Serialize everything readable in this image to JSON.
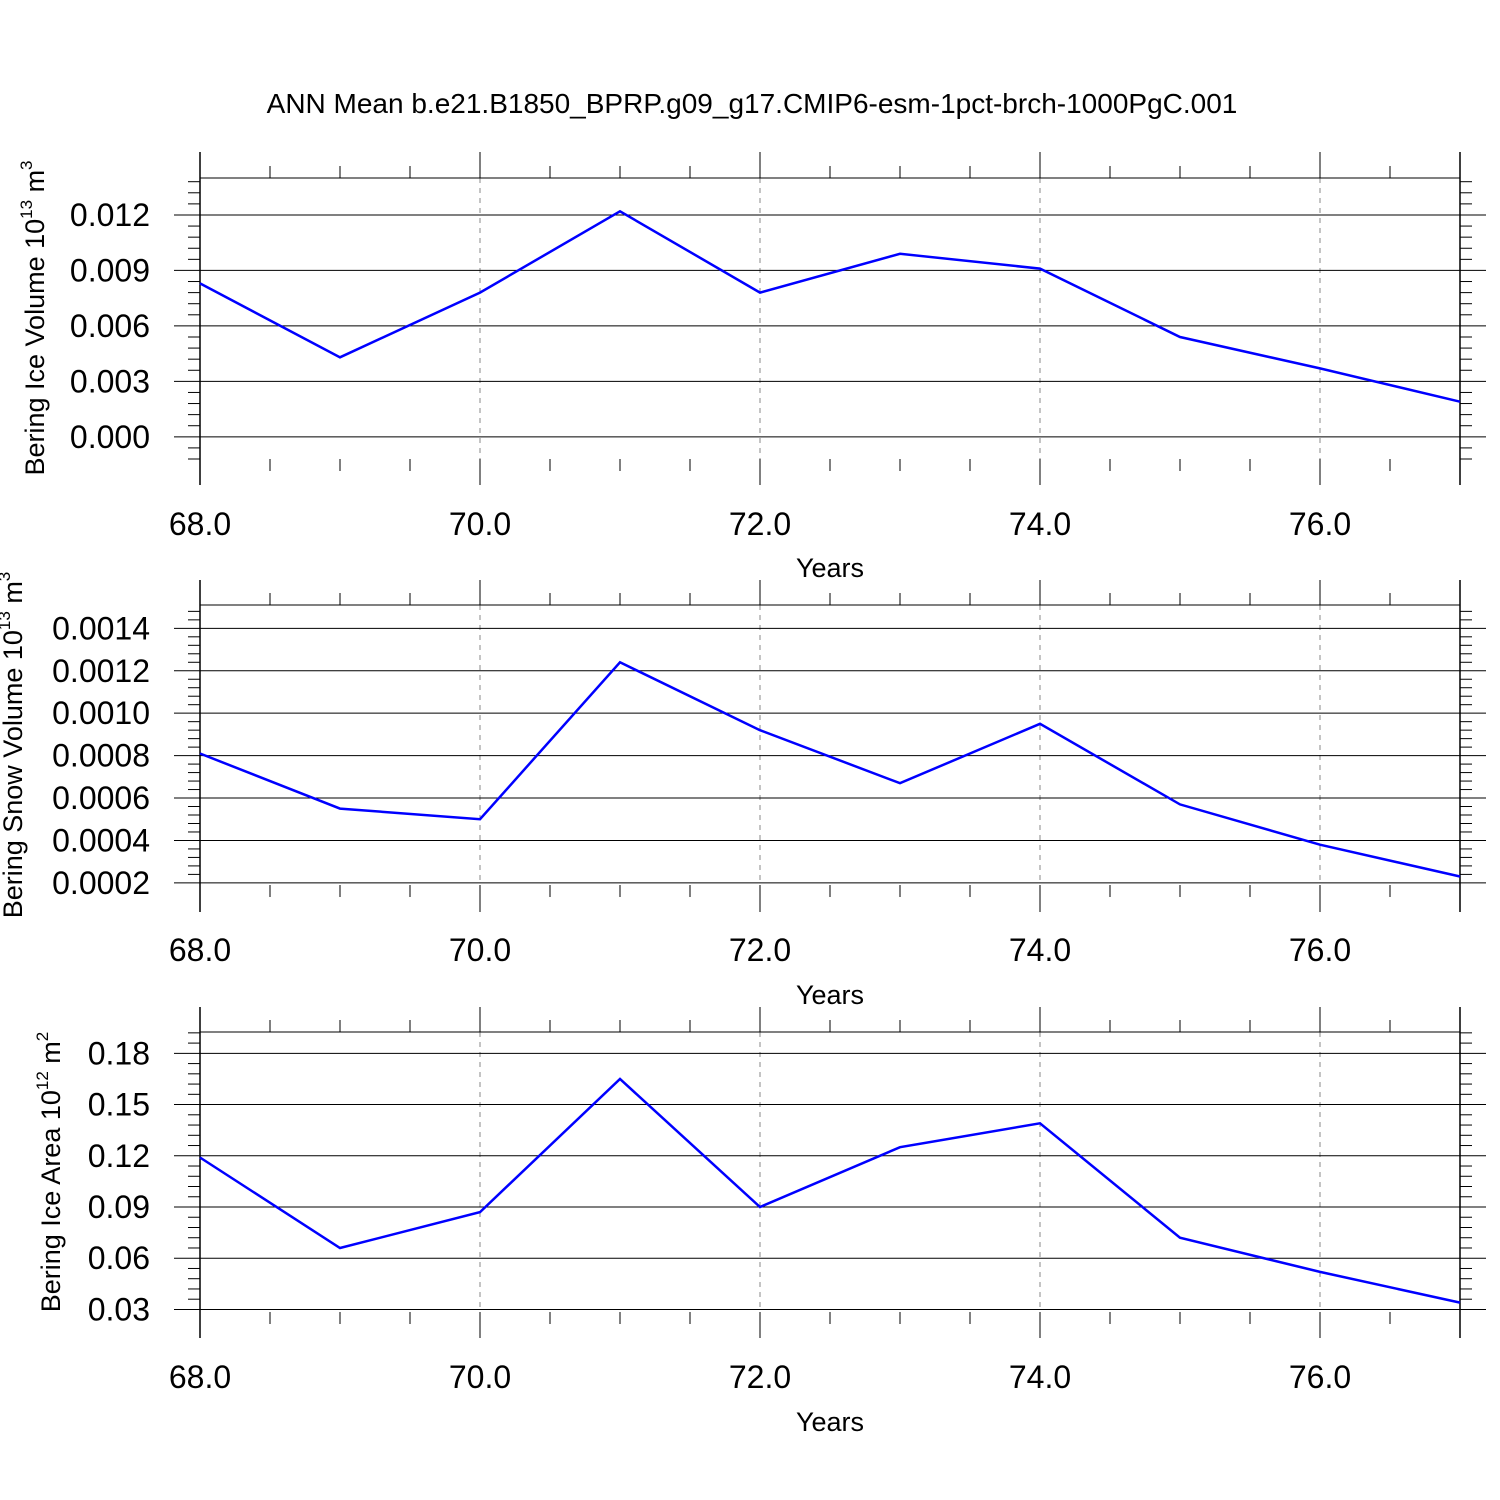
{
  "chart_data": [
    {
      "type": "line",
      "title": "ANN Mean b.e21.B1850_BPRP.g09_g17.CMIP6-esm-1pct-brch-1000PgC.001",
      "xlabel": "Years",
      "ylabel_text": "Bering Ice Volume 10",
      "ylabel_exp": "13",
      "ylabel_unit": " m",
      "ylabel_unit_exp": "3",
      "xlim": [
        68,
        77
      ],
      "ylim": [
        -0.0012,
        0.014
      ],
      "x_ticks": [
        68,
        70,
        72,
        74,
        76
      ],
      "x_tick_labels": [
        "68.0",
        "70.0",
        "72.0",
        "74.0",
        "76.0"
      ],
      "y_ticks": [
        0,
        0.003,
        0.006,
        0.009,
        0.012
      ],
      "y_tick_labels": [
        "0.000",
        "0.003",
        "0.006",
        "0.009",
        "0.012"
      ],
      "grid": "dashed vertical at major x ticks",
      "line_color": "#0000ff",
      "series": [
        {
          "x": [
            68,
            69,
            70,
            71,
            72,
            73,
            74,
            75,
            76,
            77
          ],
          "values": [
            0.0083,
            0.0043,
            0.0078,
            0.0122,
            0.0078,
            0.0099,
            0.0091,
            0.0054,
            0.0037,
            0.0019
          ]
        }
      ]
    },
    {
      "type": "line",
      "title": "",
      "xlabel": "Years",
      "ylabel_text": "Bering Snow Volume 10",
      "ylabel_exp": "13",
      "ylabel_unit": " m",
      "ylabel_unit_exp": "3",
      "xlim": [
        68,
        77
      ],
      "ylim": [
        0.00019,
        0.00151
      ],
      "x_ticks": [
        68,
        70,
        72,
        74,
        76
      ],
      "x_tick_labels": [
        "68.0",
        "70.0",
        "72.0",
        "74.0",
        "76.0"
      ],
      "y_ticks": [
        0.0002,
        0.0004,
        0.0006,
        0.0008,
        0.001,
        0.0012,
        0.0014
      ],
      "y_tick_labels": [
        "0.0002",
        "0.0004",
        "0.0006",
        "0.0008",
        "0.0010",
        "0.0012",
        "0.0014"
      ],
      "grid": "dashed vertical at major x ticks",
      "line_color": "#0000ff",
      "series": [
        {
          "x": [
            68,
            69,
            70,
            71,
            72,
            73,
            74,
            75,
            76,
            77
          ],
          "values": [
            0.00081,
            0.00055,
            0.0005,
            0.00124,
            0.00092,
            0.00067,
            0.00095,
            0.00057,
            0.00038,
            0.00023
          ]
        }
      ]
    },
    {
      "type": "line",
      "title": "",
      "xlabel": "Years",
      "ylabel_text": "Bering Ice Area 10",
      "ylabel_exp": "12",
      "ylabel_unit": " m",
      "ylabel_unit_exp": "2",
      "xlim": [
        68,
        77
      ],
      "ylim": [
        0.0285,
        0.1925
      ],
      "x_ticks": [
        68,
        70,
        72,
        74,
        76
      ],
      "x_tick_labels": [
        "68.0",
        "70.0",
        "72.0",
        "74.0",
        "76.0"
      ],
      "y_ticks": [
        0.03,
        0.06,
        0.09,
        0.12,
        0.15,
        0.18
      ],
      "y_tick_labels": [
        "0.03",
        "0.06",
        "0.09",
        "0.12",
        "0.15",
        "0.18"
      ],
      "grid": "dashed vertical at major x ticks",
      "line_color": "#0000ff",
      "series": [
        {
          "x": [
            68,
            69,
            70,
            71,
            72,
            73,
            74,
            75,
            76,
            77
          ],
          "values": [
            0.119,
            0.066,
            0.087,
            0.165,
            0.09,
            0.125,
            0.139,
            0.072,
            0.052,
            0.034
          ]
        }
      ]
    }
  ]
}
